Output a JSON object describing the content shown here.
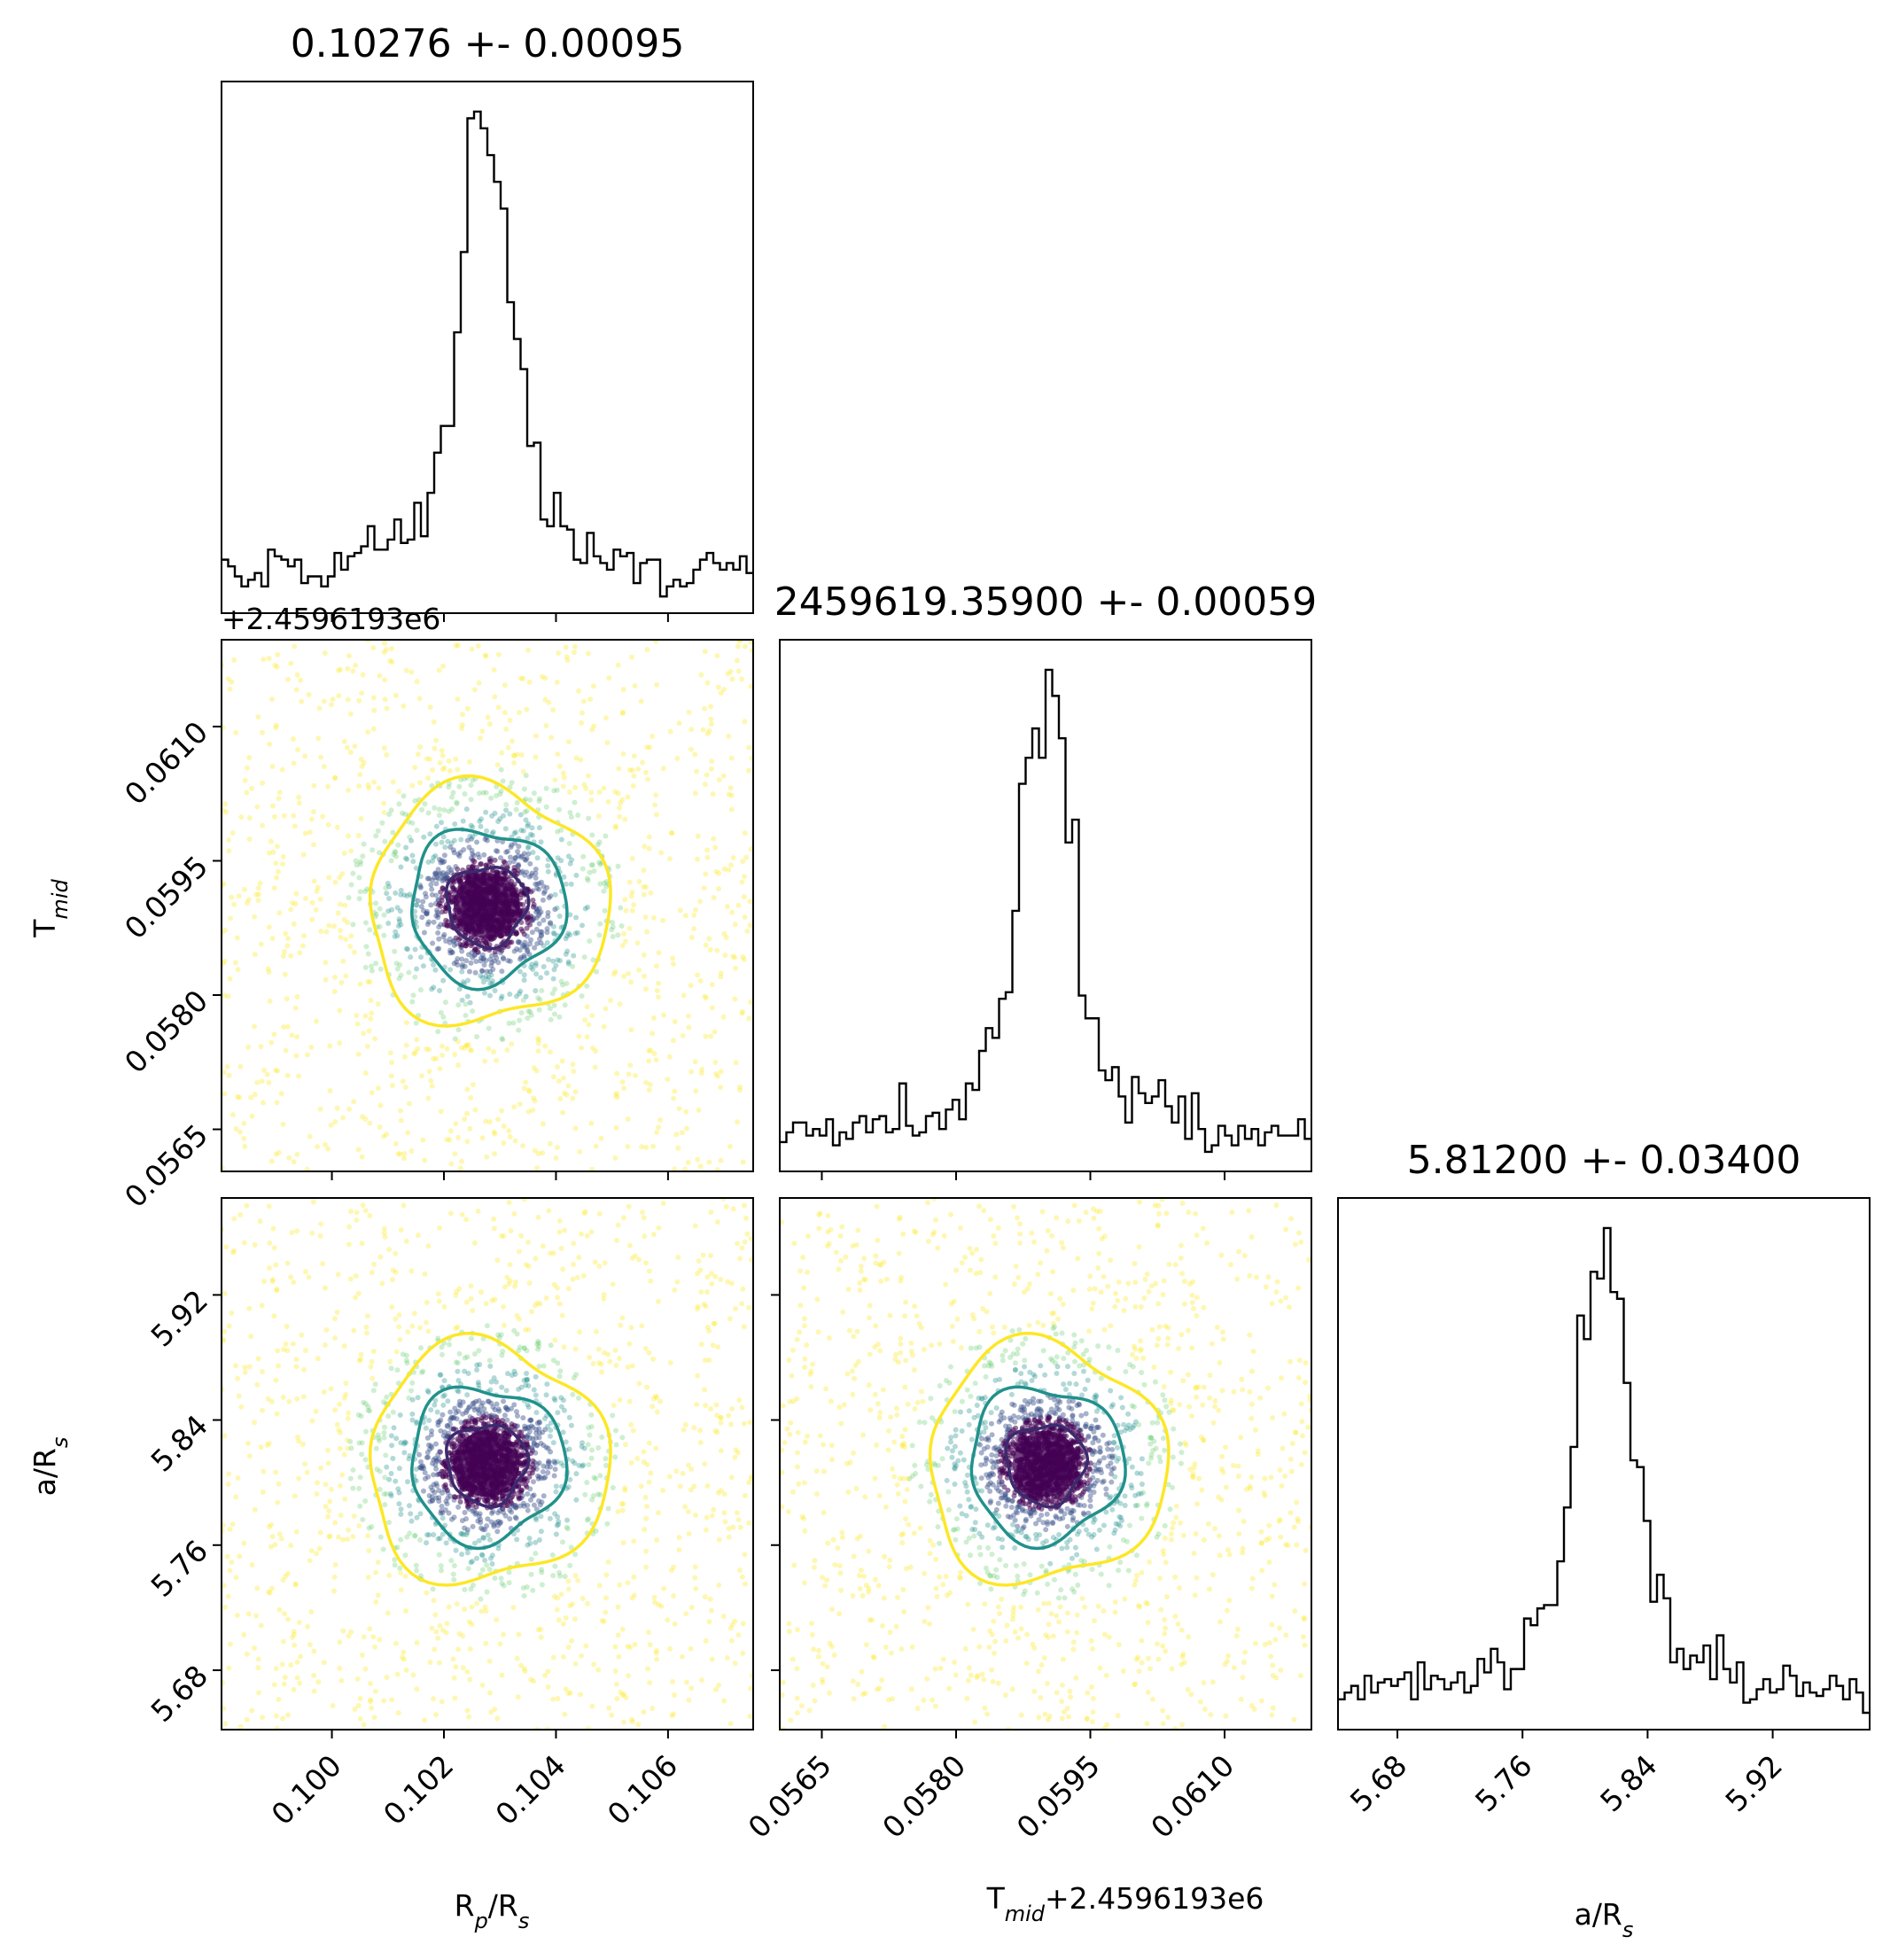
{
  "chart_data": {
    "type": "corner",
    "parameters": [
      {
        "key": "rp",
        "label": "R_p/R_s",
        "title": "0.10276 +- 0.00095",
        "median": 0.10276,
        "sigma": 0.00095,
        "range": [
          0.09803,
          0.10752
        ],
        "ticks": [
          "0.100",
          "0.102",
          "0.104",
          "0.106"
        ],
        "tick_values": [
          0.1,
          0.102,
          0.104,
          0.106
        ],
        "hist_width": 0.0008
      },
      {
        "key": "tmid",
        "label": "T_mid",
        "title": "2459619.35900 +- 0.00059",
        "median": 0.059,
        "sigma": 0.00059,
        "range": [
          0.05603,
          0.06197
        ],
        "ticks": [
          "0.0565",
          "0.0580",
          "0.0595",
          "0.0610"
        ],
        "tick_values": [
          0.0565,
          0.058,
          0.0595,
          0.061
        ],
        "offset_text": "+2.4596193e6",
        "axis_label_text": "T_mid+2.4596193e6",
        "hist_width": 0.0005
      },
      {
        "key": "ars",
        "label": "a/R_s",
        "title": "5.81200 +- 0.03400",
        "median": 5.812,
        "sigma": 0.034,
        "range": [
          5.642,
          5.982
        ],
        "ticks": [
          "5.68",
          "5.76",
          "5.84",
          "5.92"
        ],
        "tick_values": [
          5.68,
          5.76,
          5.84,
          5.92
        ],
        "hist_width": 0.03
      }
    ],
    "contour_levels": [
      "1-sigma",
      "2-sigma",
      "3-sigma"
    ],
    "contour_colors": [
      "#3b2a6e",
      "#21918c",
      "#fde725"
    ],
    "point_colors": [
      "#440154",
      "#3b528b",
      "#21918c",
      "#5ec962",
      "#fde725"
    ],
    "histogram_color": "#000000",
    "grid": false
  }
}
